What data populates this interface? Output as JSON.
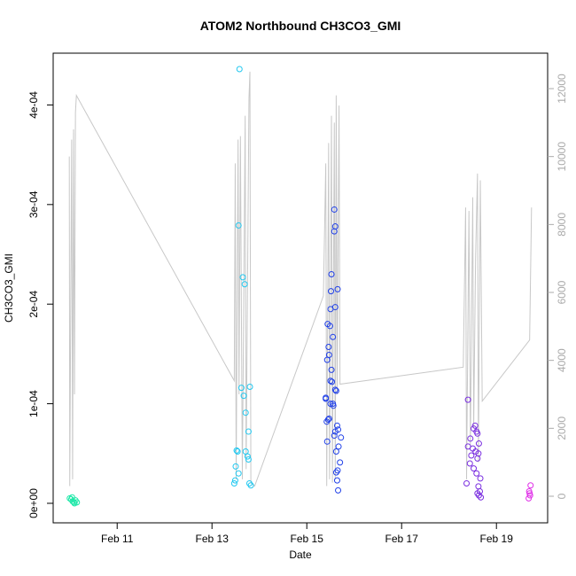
{
  "chart_data": {
    "type": "scatter",
    "title": "ATOM2 Northbound CH3CO3_GMI",
    "x_label": "Date",
    "y_label": "CH3CO3_GMI",
    "xlim": [
      9.65,
      20.08
    ],
    "ylim": [
      -1.96e-05,
      0.000452
    ],
    "y2lim": [
      -783,
      13044
    ],
    "xticks": [
      {
        "value": 11,
        "label": "Feb 11"
      },
      {
        "value": 13,
        "label": "Feb 13"
      },
      {
        "value": 15,
        "label": "Feb 15"
      },
      {
        "value": 17,
        "label": "Feb 17"
      },
      {
        "value": 19,
        "label": "Feb 19"
      }
    ],
    "yticks": [
      {
        "value": 0,
        "label": "0e+00"
      },
      {
        "value": 0.0001,
        "label": "1e-04"
      },
      {
        "value": 0.0002,
        "label": "2e-04"
      },
      {
        "value": 0.0003,
        "label": "3e-04"
      },
      {
        "value": 0.0004,
        "label": "4e-04"
      }
    ],
    "y2ticks": [
      0,
      2000,
      4000,
      6000,
      8000,
      10000,
      12000
    ],
    "series": [
      {
        "type": "line",
        "axis": "y2",
        "color": "#c8c8c8",
        "x": [
          9.99,
          10.0,
          10.04,
          10.06,
          10.08,
          10.1,
          10.12,
          10.14,
          13.47,
          13.49,
          13.51,
          13.55,
          13.57,
          13.6,
          13.64,
          13.7,
          13.72,
          13.78,
          13.8,
          13.82,
          13.9,
          15.35,
          15.4,
          15.42,
          15.46,
          15.48,
          15.52,
          15.54,
          15.58,
          15.6,
          15.62,
          15.64,
          15.68,
          15.7,
          18.3,
          18.35,
          18.37,
          18.42,
          18.45,
          18.5,
          18.52,
          18.56,
          18.6,
          18.62,
          18.66,
          18.7,
          19.7,
          19.74
        ],
        "values": [
          10000,
          300,
          10500,
          500,
          10800,
          3000,
          11300,
          11800,
          3400,
          9800,
          500,
          10500,
          3000,
          10600,
          500,
          11200,
          800,
          11700,
          12500,
          400,
          300,
          5900,
          9800,
          300,
          10400,
          500,
          11200,
          400,
          11000,
          500,
          11800,
          3000,
          11500,
          3300,
          3800,
          8500,
          500,
          8400,
          1500,
          8800,
          2000,
          7000,
          9500,
          1000,
          9300,
          2800,
          4600,
          8500
        ]
      },
      {
        "color": "#1ee8a8",
        "x": [
          10.0,
          10.03,
          10.06,
          10.09,
          10.12,
          10.15,
          10.05,
          10.1
        ],
        "values": [
          5e-06,
          4e-06,
          2e-06,
          1e-06,
          3e-06,
          1e-06,
          6e-06,
          0.0
        ]
      },
      {
        "color": "#22c8f0",
        "x": [
          13.58,
          13.56,
          13.65,
          13.69,
          13.62,
          13.8,
          13.67,
          13.71,
          13.77,
          13.52,
          13.54,
          13.71,
          13.75,
          13.5,
          13.56,
          13.49,
          13.47,
          13.79,
          13.82,
          13.77
        ],
        "values": [
          0.000436,
          0.000279,
          0.000227,
          0.00022,
          0.000116,
          0.000117,
          0.000108,
          9.1e-05,
          7.2e-05,
          5.3e-05,
          5.2e-05,
          5.2e-05,
          4.7e-05,
          3.7e-05,
          3e-05,
          2.3e-05,
          2e-05,
          2e-05,
          1.8e-05,
          4.4e-05
        ]
      },
      {
        "color": "#2040e8",
        "x": [
          15.58,
          15.6,
          15.58,
          15.52,
          15.65,
          15.51,
          15.6,
          15.5,
          15.44,
          15.49,
          15.55,
          15.46,
          15.47,
          15.43,
          15.52,
          15.5,
          15.53,
          15.62,
          15.6,
          15.4,
          15.55,
          15.5,
          15.56,
          15.47,
          15.45,
          15.42,
          15.64,
          15.66,
          15.6,
          15.58,
          15.72,
          15.43,
          15.67,
          15.62,
          15.7,
          15.65,
          15.62,
          15.64,
          15.66,
          15.4
        ],
        "values": [
          0.000295,
          0.000278,
          0.000273,
          0.00023,
          0.000215,
          0.000213,
          0.000197,
          0.000195,
          0.00018,
          0.000178,
          0.000167,
          0.000157,
          0.000149,
          0.000144,
          0.000134,
          0.000123,
          0.000122,
          0.000113,
          0.000114,
          0.000105,
          0.0001,
          0.0001,
          9.8e-05,
          8.5e-05,
          8.4e-05,
          8.2e-05,
          7.8e-05,
          7.4e-05,
          7.2e-05,
          6.8e-05,
          6.6e-05,
          6.2e-05,
          5.7e-05,
          5.2e-05,
          4.1e-05,
          3.3e-05,
          3.1e-05,
          2.3e-05,
          1.3e-05,
          0.000106
        ]
      },
      {
        "color": "#7a2ee0",
        "x": [
          18.4,
          18.55,
          18.52,
          18.58,
          18.6,
          18.45,
          18.63,
          18.4,
          18.5,
          18.56,
          18.62,
          18.47,
          18.6,
          18.44,
          18.52,
          18.58,
          18.66,
          18.37,
          18.62,
          18.65,
          18.6,
          18.63,
          18.67
        ],
        "values": [
          0.000104,
          7.8e-05,
          7.5e-05,
          7.2e-05,
          7e-05,
          6.5e-05,
          6e-05,
          5.7e-05,
          5.5e-05,
          5.2e-05,
          5e-05,
          4.8e-05,
          4.5e-05,
          4e-05,
          3.5e-05,
          3e-05,
          2.5e-05,
          2e-05,
          1.7e-05,
          1.2e-05,
          1e-05,
          8e-06,
          6e-06
        ]
      },
      {
        "color": "#e030e8",
        "x": [
          19.72,
          19.69,
          19.7,
          19.71,
          19.68
        ],
        "values": [
          1.8e-05,
          1.2e-05,
          1e-05,
          8e-06,
          5e-06
        ]
      }
    ]
  }
}
